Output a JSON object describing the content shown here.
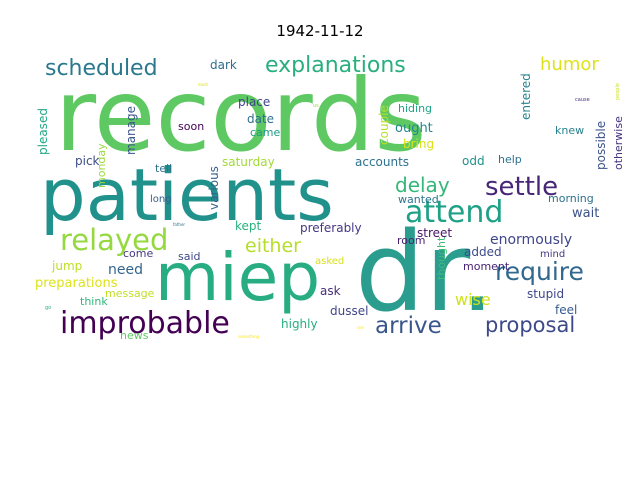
{
  "chart_data": {
    "type": "wordcloud",
    "title": "1942-11-12",
    "words": [
      {
        "text": "records",
        "weight": 100,
        "color": "#5ec962"
      },
      {
        "text": "patients",
        "weight": 72,
        "color": "#21918c"
      },
      {
        "text": "dr.",
        "weight": 70,
        "color": "#2a9d8f"
      },
      {
        "text": "miep",
        "weight": 62,
        "color": "#27ad81"
      },
      {
        "text": "improbable",
        "weight": 30,
        "color": "#440154"
      },
      {
        "text": "relayed",
        "weight": 29,
        "color": "#95d840"
      },
      {
        "text": "attend",
        "weight": 27,
        "color": "#1fa187"
      },
      {
        "text": "settle",
        "weight": 25,
        "color": "#482677"
      },
      {
        "text": "require",
        "weight": 23,
        "color": "#31688e"
      },
      {
        "text": "scheduled",
        "weight": 21,
        "color": "#2a788e"
      },
      {
        "text": "explanations",
        "weight": 21,
        "color": "#29af7f"
      },
      {
        "text": "delay",
        "weight": 20,
        "color": "#35b779"
      },
      {
        "text": "arrive",
        "weight": 20,
        "color": "#39568c"
      },
      {
        "text": "proposal",
        "weight": 20,
        "color": "#3e4989"
      },
      {
        "text": "either",
        "weight": 17,
        "color": "#b5de2b"
      },
      {
        "text": "humor",
        "weight": 17,
        "color": "#dde318"
      },
      {
        "text": "enormously",
        "weight": 14,
        "color": "#404688"
      },
      {
        "text": "wise",
        "weight": 14,
        "color": "#d0e11c"
      },
      {
        "text": "need",
        "weight": 12,
        "color": "#33638d"
      },
      {
        "text": "preferably",
        "weight": 11,
        "color": "#453781"
      },
      {
        "text": "stupid",
        "weight": 11,
        "color": "#3f4788"
      },
      {
        "text": "saturday",
        "weight": 11,
        "color": "#a2da37"
      },
      {
        "text": "accounts",
        "weight": 11,
        "color": "#2c728e"
      },
      {
        "text": "couple",
        "weight": 11,
        "color": "#b8de29"
      },
      {
        "text": "ought",
        "weight": 11,
        "color": "#24878e"
      },
      {
        "text": "bring",
        "weight": 11,
        "color": "#d8e219"
      },
      {
        "text": "entered",
        "weight": 11,
        "color": "#25848e"
      },
      {
        "text": "possible",
        "weight": 10,
        "color": "#3b528b"
      },
      {
        "text": "otherwise",
        "weight": 9,
        "color": "#463480"
      },
      {
        "text": "date",
        "weight": 10,
        "color": "#2d708e"
      },
      {
        "text": "place",
        "weight": 10,
        "color": "#414487"
      },
      {
        "text": "various",
        "weight": 10,
        "color": "#34618d"
      },
      {
        "text": "manage",
        "weight": 10,
        "color": "#3a548c"
      },
      {
        "text": "pleased",
        "weight": 10,
        "color": "#22a884"
      },
      {
        "text": "monday",
        "weight": 9,
        "color": "#9bd93c"
      },
      {
        "text": "pick",
        "weight": 10,
        "color": "#3d4d8a"
      },
      {
        "text": "dark",
        "weight": 10,
        "color": "#2e6e8e"
      },
      {
        "text": "soon",
        "weight": 9,
        "color": "#440154"
      },
      {
        "text": "came",
        "weight": 9,
        "color": "#1f9a8a"
      },
      {
        "text": "hiding",
        "weight": 9,
        "color": "#20a386"
      },
      {
        "text": "knew",
        "weight": 9,
        "color": "#26828e"
      },
      {
        "text": "odd",
        "weight": 10,
        "color": "#20928c"
      },
      {
        "text": "help",
        "weight": 9,
        "color": "#2c728e"
      },
      {
        "text": "added",
        "weight": 10,
        "color": "#3e4a89"
      },
      {
        "text": "moment",
        "weight": 9,
        "color": "#482475"
      },
      {
        "text": "morning",
        "weight": 8,
        "color": "#2e6f8e"
      },
      {
        "text": "wait",
        "weight": 10,
        "color": "#3b518b"
      },
      {
        "text": "wanted",
        "weight": 9,
        "color": "#2b758e"
      },
      {
        "text": "room",
        "weight": 9,
        "color": "#481f70"
      },
      {
        "text": "street",
        "weight": 9,
        "color": "#481467"
      },
      {
        "text": "kept",
        "weight": 10,
        "color": "#29af7f"
      },
      {
        "text": "come",
        "weight": 9,
        "color": "#453882"
      },
      {
        "text": "said",
        "weight": 9,
        "color": "#3e4a89"
      },
      {
        "text": "jump",
        "weight": 9,
        "color": "#bddf26"
      },
      {
        "text": "preparations",
        "weight": 9,
        "color": "#dde318"
      },
      {
        "text": "message",
        "weight": 9,
        "color": "#c0df25"
      },
      {
        "text": "think",
        "weight": 8,
        "color": "#31b57b"
      },
      {
        "text": "news",
        "weight": 8,
        "color": "#5ec962"
      },
      {
        "text": "highly",
        "weight": 9,
        "color": "#26ad81"
      },
      {
        "text": "dussel",
        "weight": 9,
        "color": "#404588"
      },
      {
        "text": "ask",
        "weight": 9,
        "color": "#472c7a"
      },
      {
        "text": "asked",
        "weight": 8,
        "color": "#d8e219"
      },
      {
        "text": "thought",
        "weight": 8,
        "color": "#3dbc74"
      },
      {
        "text": "feel",
        "weight": 9,
        "color": "#375b8d"
      },
      {
        "text": "mind",
        "weight": 8,
        "color": "#443983"
      },
      {
        "text": "tell",
        "weight": 9,
        "color": "#2d708e"
      },
      {
        "text": "long",
        "weight": 8,
        "color": "#355f8d"
      },
      {
        "text": "people",
        "weight": 4,
        "color": "#cbe11e"
      },
      {
        "text": "cause",
        "weight": 3,
        "color": "#46327e"
      },
      {
        "text": "something",
        "weight": 3,
        "color": "#fde725"
      },
      {
        "text": "most",
        "weight": 3,
        "color": "#dde318"
      },
      {
        "text": "us",
        "weight": 3,
        "color": "#9bd93c"
      },
      {
        "text": "father",
        "weight": 3,
        "color": "#2c728e"
      },
      {
        "text": "go",
        "weight": 3,
        "color": "#29af7f"
      },
      {
        "text": "see",
        "weight": 3,
        "color": "#fde725"
      }
    ]
  }
}
